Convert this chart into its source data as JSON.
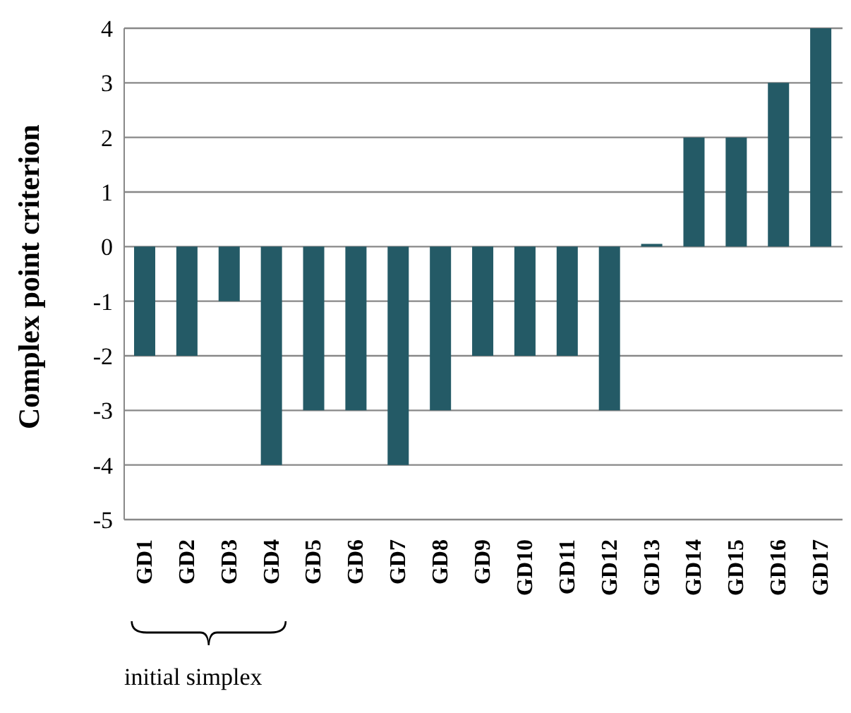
{
  "chart_data": {
    "type": "bar",
    "ylabel": "Complex point criterion",
    "categories": [
      "GD1",
      "GD2",
      "GD3",
      "GD4",
      "GD5",
      "GD6",
      "GD7",
      "GD8",
      "GD9",
      "GD10",
      "GD11",
      "GD12",
      "GD13",
      "GD14",
      "GD15",
      "GD16",
      "GD17"
    ],
    "values": [
      -2,
      -2,
      -1,
      -4,
      -3,
      -3,
      -4,
      -3,
      -2,
      -2,
      -2,
      -3,
      0.05,
      2,
      2,
      3,
      4
    ],
    "color": "#245a66",
    "ylim": [
      -5,
      4
    ],
    "yticks": [
      -5,
      -4,
      -3,
      -2,
      -1,
      0,
      1,
      2,
      3,
      4
    ],
    "grid": "y",
    "annotations": [
      "initial simplex"
    ]
  }
}
